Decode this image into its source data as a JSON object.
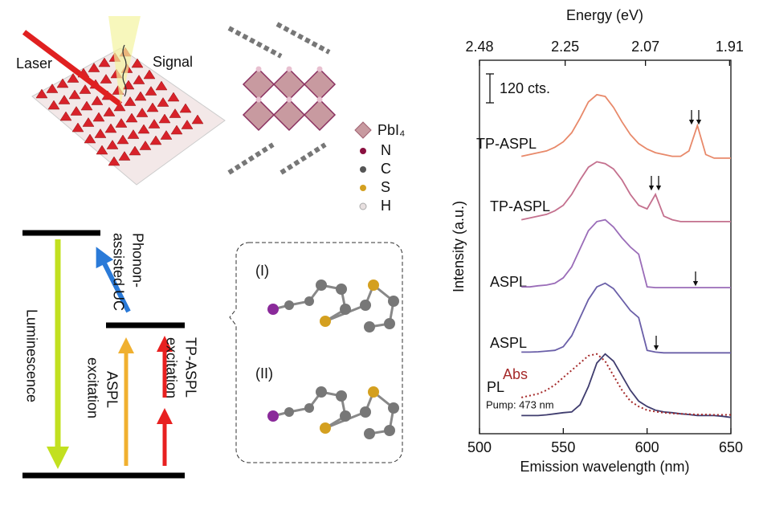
{
  "schematic": {
    "laser": "Laser",
    "signal": "Signal",
    "legend_pbi4": "PbI₄",
    "legend_n": "N",
    "legend_c": "C",
    "legend_s": "S",
    "legend_h": "H",
    "phonon_line1": "Phonon-",
    "phonon_line2": "assisted UC",
    "luminescence": "Luminescence",
    "aspl_line1": "ASPL",
    "aspl_line2": "excitation",
    "tpaspl_line1": "TP-ASPL",
    "tpaspl_line2": "excitation",
    "mode_1": "(I)",
    "mode_2": "(II)"
  },
  "chart_data": {
    "type": "line",
    "xlabel": "Emission wavelength (nm)",
    "ylabel": "Intensity (a.u.)",
    "top_axis_label": "Energy (eV)",
    "top_ticks": [
      2.48,
      2.25,
      2.07,
      1.91
    ],
    "scale_bar_label": "120 cts.",
    "pump_label": "Pump: 473 nm",
    "xlim": [
      500,
      650
    ],
    "xticks": [
      500,
      550,
      600,
      650
    ],
    "ylim": [
      -3,
      100
    ],
    "x": [
      525,
      530,
      535,
      540,
      545,
      550,
      555,
      560,
      565,
      570,
      575,
      580,
      585,
      590,
      595,
      600,
      605,
      610,
      615,
      620,
      625,
      630,
      635,
      640,
      645,
      650
    ],
    "series": [
      {
        "name": "TP-ASPL",
        "color": "#e8896a",
        "style": "solid",
        "values": [
          73.5,
          74,
          74.5,
          75,
          76,
          77.5,
          80,
          84,
          88.5,
          90.5,
          90,
          87,
          83,
          79.5,
          77,
          75.5,
          74.5,
          74,
          73.5,
          73.5,
          75,
          82,
          74,
          73,
          73,
          73
        ]
      },
      {
        "name": "TP-ASPL",
        "color": "#c4708e",
        "style": "solid",
        "values": [
          56,
          56.5,
          57,
          57.5,
          58.5,
          60,
          63,
          67,
          70.5,
          72,
          71.5,
          70,
          67,
          63,
          60,
          59,
          63,
          57,
          56,
          55.5,
          55.5,
          55.5,
          55.5,
          55.5,
          55.5,
          55.5
        ]
      },
      {
        "name": "ASPL",
        "color": "#9a6cb8",
        "style": "solid",
        "values": [
          37.5,
          37.5,
          37.8,
          38,
          38.5,
          40,
          43,
          48,
          53,
          55.5,
          56,
          54,
          51,
          48.5,
          46.5,
          37.5,
          37.3,
          37.3,
          37.3,
          37.3,
          37.3,
          37.3,
          37.3,
          37.3,
          37.3,
          37.3
        ]
      },
      {
        "name": "ASPL",
        "color": "#6a5fa8",
        "style": "solid",
        "values": [
          19.5,
          19.5,
          19.6,
          19.8,
          20,
          21,
          24,
          29,
          34,
          37.5,
          38.5,
          37,
          34,
          31,
          29,
          20,
          19.5,
          19.3,
          19.3,
          19.3,
          19.3,
          19.3,
          19.3,
          19.3,
          19.3,
          19.3
        ]
      },
      {
        "name": "PL",
        "color": "#3f3c6e",
        "style": "solid",
        "values": [
          2,
          2,
          2,
          2.2,
          2.5,
          2.8,
          3,
          5,
          10,
          16.5,
          19,
          17,
          13,
          9,
          6,
          4.5,
          3.5,
          3,
          2.8,
          2.5,
          2.3,
          2,
          2,
          2,
          1.8,
          1.5
        ]
      },
      {
        "name": "Abs",
        "color": "#a52a2a",
        "style": "dotted",
        "values": [
          7,
          7.5,
          8,
          9,
          10.5,
          12.5,
          14.5,
          16.5,
          18.5,
          19,
          17,
          13,
          9,
          6,
          4.5,
          3.5,
          3.1,
          2.8,
          2.6,
          2.5,
          2.4,
          2.3,
          2.3,
          2.2,
          2.2,
          2.2
        ]
      }
    ]
  }
}
